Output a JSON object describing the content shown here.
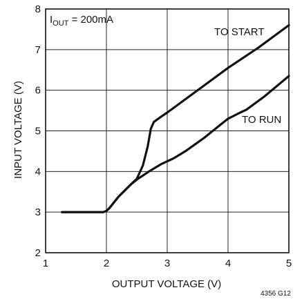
{
  "chart_data": {
    "type": "line",
    "xlabel": "OUTPUT VOLTAGE (V)",
    "ylabel": "INPUT VOLTAGE (V)",
    "xlim": [
      1,
      5
    ],
    "ylim": [
      2,
      8
    ],
    "x_ticks": [
      "1",
      "2",
      "3",
      "4",
      "5"
    ],
    "y_ticks": [
      "2",
      "3",
      "4",
      "5",
      "6",
      "7",
      "8"
    ],
    "grid": true,
    "condition_prefix": "I",
    "condition_subscript": "OUT",
    "condition_suffix": " = 200mA",
    "figure_code": "4356 G12",
    "series": [
      {
        "name": "TO START",
        "points": [
          [
            1.27,
            3.0
          ],
          [
            1.95,
            3.0
          ],
          [
            2.0,
            3.03
          ],
          [
            2.05,
            3.1
          ],
          [
            2.2,
            3.38
          ],
          [
            2.4,
            3.68
          ],
          [
            2.5,
            3.82
          ],
          [
            2.6,
            4.15
          ],
          [
            2.68,
            4.62
          ],
          [
            2.73,
            5.05
          ],
          [
            2.78,
            5.22
          ],
          [
            2.9,
            5.35
          ],
          [
            3.0,
            5.45
          ],
          [
            3.5,
            6.0
          ],
          [
            4.0,
            6.55
          ],
          [
            4.5,
            7.05
          ],
          [
            5.0,
            7.6
          ]
        ]
      },
      {
        "name": "TO RUN",
        "points": [
          [
            1.27,
            3.0
          ],
          [
            1.95,
            3.0
          ],
          [
            2.0,
            3.03
          ],
          [
            2.05,
            3.1
          ],
          [
            2.2,
            3.38
          ],
          [
            2.4,
            3.68
          ],
          [
            2.5,
            3.8
          ],
          [
            2.7,
            4.0
          ],
          [
            2.9,
            4.18
          ],
          [
            3.1,
            4.32
          ],
          [
            3.3,
            4.5
          ],
          [
            3.6,
            4.82
          ],
          [
            3.85,
            5.12
          ],
          [
            4.0,
            5.3
          ],
          [
            4.2,
            5.45
          ],
          [
            4.3,
            5.52
          ],
          [
            4.6,
            5.85
          ],
          [
            5.0,
            6.35
          ]
        ]
      }
    ]
  }
}
